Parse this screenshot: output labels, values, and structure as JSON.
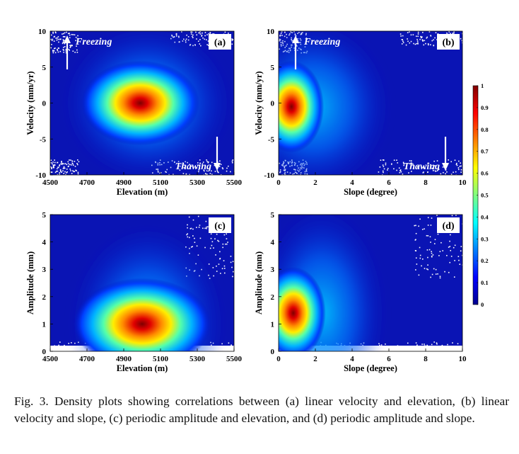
{
  "caption": "Fig. 3.    Density plots showing correlations between (a) linear velocity and elevation, (b) linear velocity and slope, (c) periodic amplitude and elevation, and (d) periodic amplitude and slope.",
  "colorbar": {
    "colormap": "jet",
    "range": [
      0,
      1
    ],
    "ticks": [
      "0",
      "0.1",
      "0.2",
      "0.3",
      "0.4",
      "0.5",
      "0.6",
      "0.7",
      "0.8",
      "0.9",
      "1"
    ]
  },
  "chart_data": [
    {
      "type": "heatmap",
      "panel_label": "(a)",
      "xlabel": "Elevation (m)",
      "ylabel": "Velocity (mm/yr)",
      "xlim": [
        4500,
        5500
      ],
      "ylim": [
        -10,
        10
      ],
      "xticks": [
        "4500",
        "4700",
        "4900",
        "5100",
        "5300",
        "5500"
      ],
      "yticks": [
        "10",
        "5",
        "0",
        "-5",
        "-10"
      ],
      "peak": {
        "x": 4990,
        "y": 0,
        "value": 1
      },
      "annotations": [
        {
          "text": "Freezing",
          "arrow": "up",
          "position": "top-left"
        },
        {
          "text": "Thawing",
          "arrow": "down",
          "position": "bottom-right"
        }
      ]
    },
    {
      "type": "heatmap",
      "panel_label": "(b)",
      "xlabel": "Slope (degree)",
      "ylabel": "Velocity (mm/yr)",
      "xlim": [
        0,
        10
      ],
      "ylim": [
        -10,
        10
      ],
      "xticks": [
        "0",
        "2",
        "4",
        "6",
        "8",
        "10"
      ],
      "yticks": [
        "10",
        "5",
        "0",
        "-5",
        "-10"
      ],
      "peak": {
        "x": 0.7,
        "y": -0.5,
        "value": 1
      },
      "annotations": [
        {
          "text": "Freezing",
          "arrow": "up",
          "position": "top-left"
        },
        {
          "text": "Thawing",
          "arrow": "down",
          "position": "bottom-right"
        }
      ]
    },
    {
      "type": "heatmap",
      "panel_label": "(c)",
      "xlabel": "Elevation (m)",
      "ylabel": "Amplitude (mm)",
      "xlim": [
        4500,
        5500
      ],
      "ylim": [
        0,
        5
      ],
      "xticks": [
        "4500",
        "4700",
        "4900",
        "5100",
        "5300",
        "5500"
      ],
      "yticks": [
        "5",
        "4",
        "3",
        "2",
        "1",
        "0"
      ],
      "peak": {
        "x": 5000,
        "y": 1,
        "value": 1
      },
      "annotations": []
    },
    {
      "type": "heatmap",
      "panel_label": "(d)",
      "xlabel": "Slope (degree)",
      "ylabel": "Amplitude (mm)",
      "xlim": [
        0,
        10
      ],
      "ylim": [
        0,
        5
      ],
      "xticks": [
        "0",
        "2",
        "4",
        "6",
        "8",
        "10"
      ],
      "yticks": [
        "5",
        "4",
        "3",
        "2",
        "1",
        "0"
      ],
      "peak": {
        "x": 0.8,
        "y": 1.4,
        "value": 1
      },
      "annotations": []
    }
  ]
}
